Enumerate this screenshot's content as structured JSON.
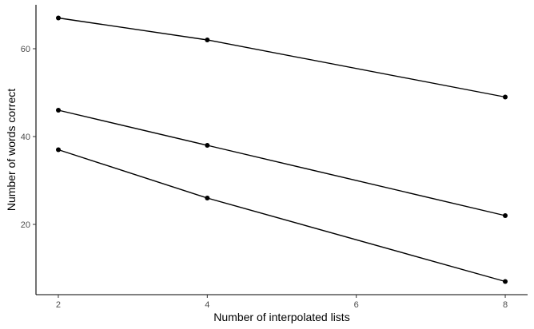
{
  "chart_data": {
    "type": "line",
    "title": "",
    "xlabel": "Number of interpolated lists",
    "ylabel": "Number of words correct",
    "x": [
      2,
      4,
      8
    ],
    "xlim": [
      1.7,
      8.3
    ],
    "ylim": [
      4,
      70
    ],
    "xticks": [
      2,
      4,
      6,
      8
    ],
    "yticks": [
      20,
      40,
      60
    ],
    "grid": false,
    "legend": "none",
    "series": [
      {
        "values": [
          67,
          62,
          49
        ]
      },
      {
        "values": [
          46,
          38,
          22
        ]
      },
      {
        "values": [
          37,
          26,
          7
        ]
      }
    ],
    "colors": {
      "line": "#000000",
      "point": "#000000",
      "tick_label": "#4d4d4d"
    }
  }
}
